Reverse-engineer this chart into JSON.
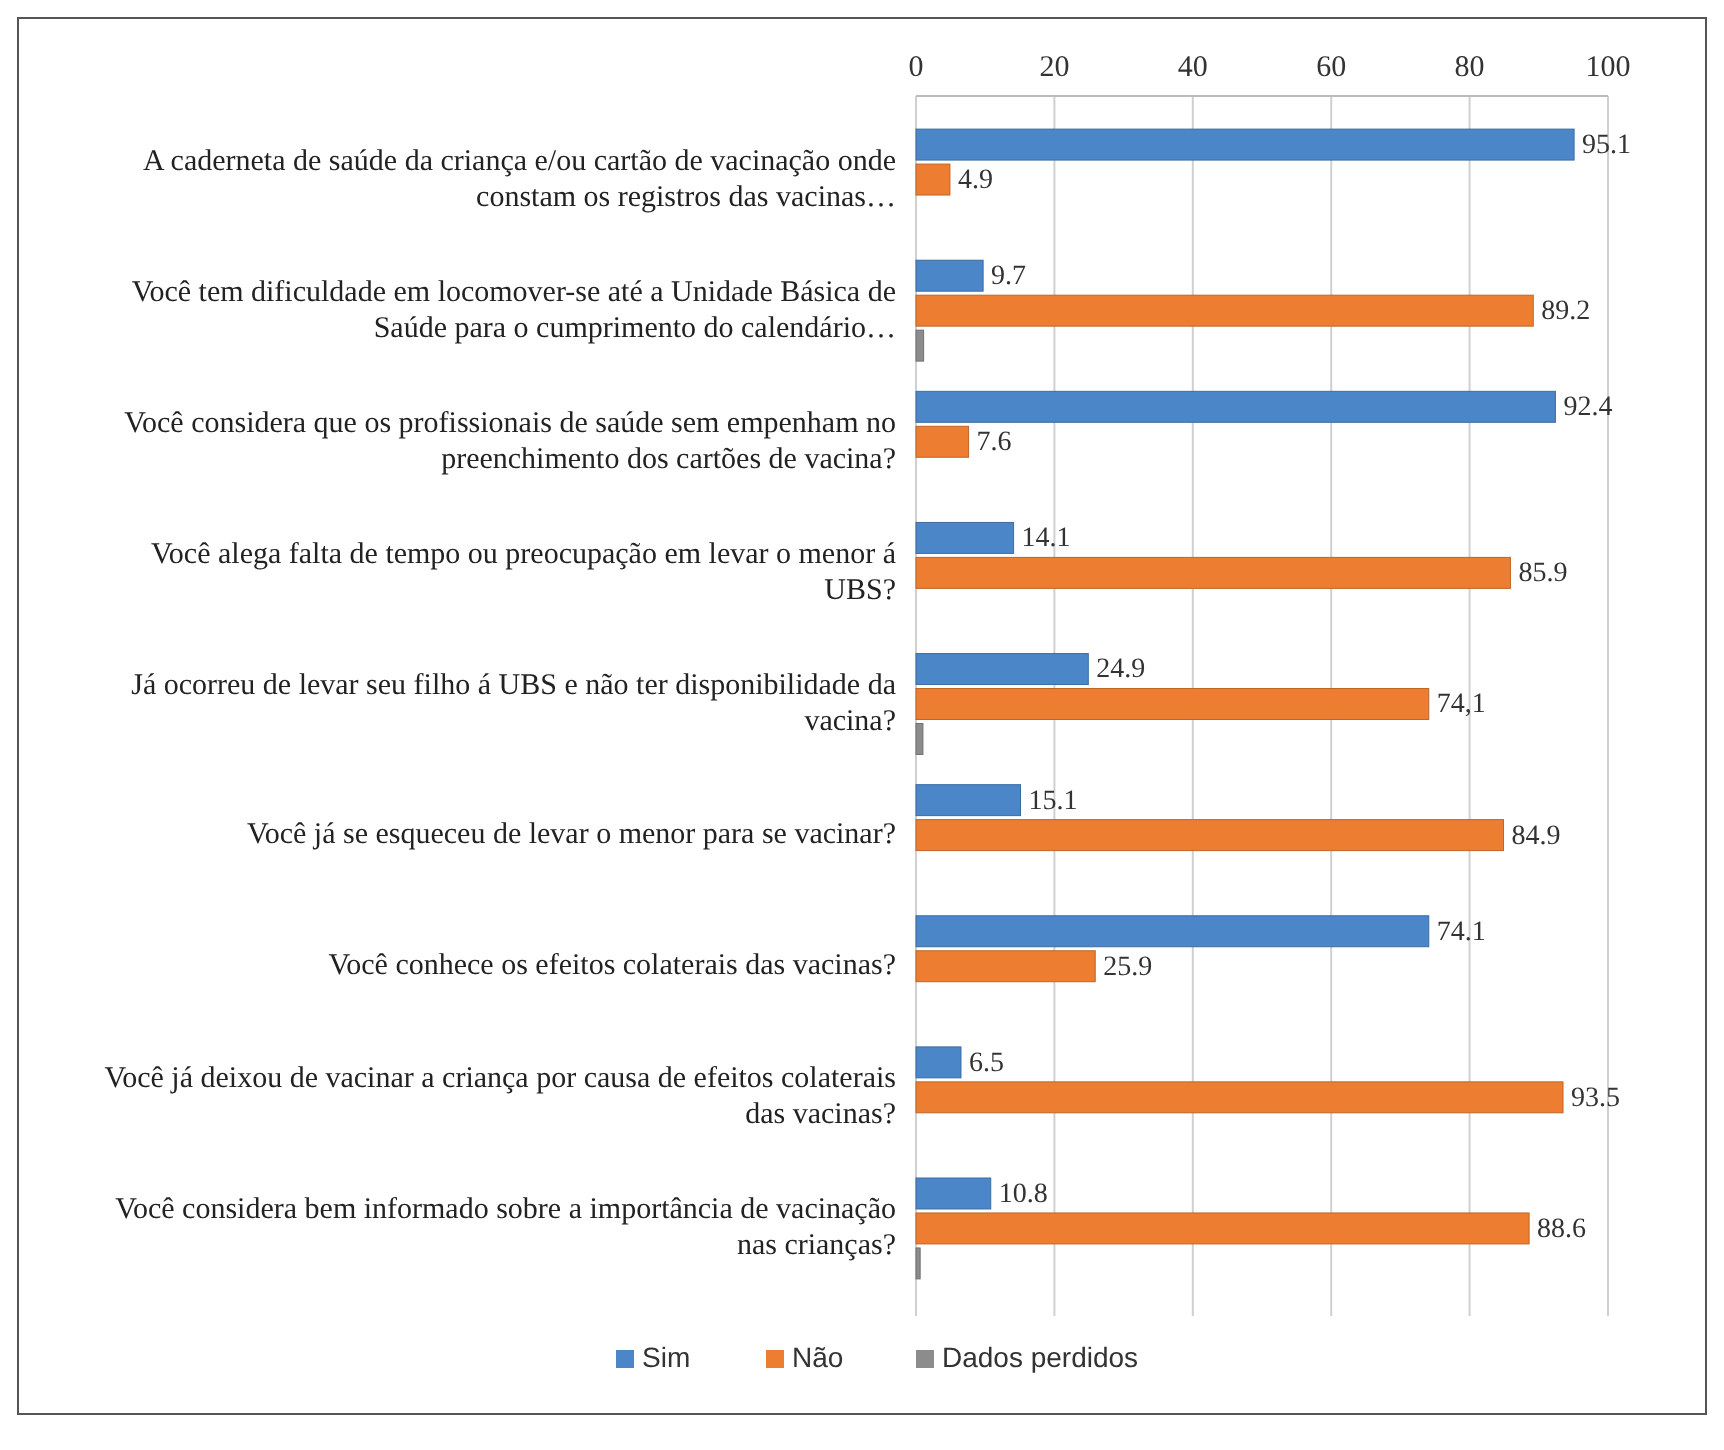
{
  "chart_data": {
    "type": "bar",
    "orientation": "horizontal",
    "categories": [
      "A caderneta de saúde da criança e/ou  cartão de vacinação onde constam os registros das vacinas…",
      "Você tem dificuldade em locomover-se até a Unidade Básica de Saúde para o cumprimento do calendário…",
      "Você considera que os profissionais de saúde sem empenham no preenchimento dos cartões de vacina?",
      "Você alega falta de tempo ou preocupação em levar o menor á UBS?",
      "Já ocorreu de levar seu filho á UBS e não ter disponibilidade da vacina?",
      "Você já se esqueceu de levar o menor para se vacinar?",
      "Você conhece os efeitos colaterais das vacinas?",
      "Você já deixou de vacinar a criança por causa de efeitos colaterais das vacinas?",
      "Você considera bem informado sobre a importância de vacinação nas crianças?"
    ],
    "series": [
      {
        "name": "Sim",
        "color": "#4a86c8",
        "values": [
          95.1,
          9.7,
          92.4,
          14.1,
          24.9,
          15.1,
          74.1,
          6.5,
          10.8
        ],
        "value_labels": [
          "95.1",
          "9.7",
          "92.4",
          "14.1",
          "24.9",
          "15.1",
          "74.1",
          "6.5",
          "10.8"
        ]
      },
      {
        "name": "Não",
        "color": "#ed7d31",
        "values": [
          4.9,
          89.2,
          7.6,
          85.9,
          74.1,
          84.9,
          25.9,
          93.5,
          88.6
        ],
        "value_labels": [
          "4.9",
          "89.2",
          "7.6",
          "85.9",
          "74,1",
          "84.9",
          "25.9",
          "93.5",
          "88.6"
        ]
      },
      {
        "name": "Dados perdidos",
        "color": "#8c8c8c",
        "values": [
          0,
          1.1,
          0,
          0,
          1,
          0,
          0,
          0,
          0.6
        ]
      }
    ],
    "xlim": [
      0,
      100
    ],
    "xticks": [
      0,
      20,
      40,
      60,
      80,
      100
    ],
    "grid": "x",
    "legend": "bottom left"
  }
}
